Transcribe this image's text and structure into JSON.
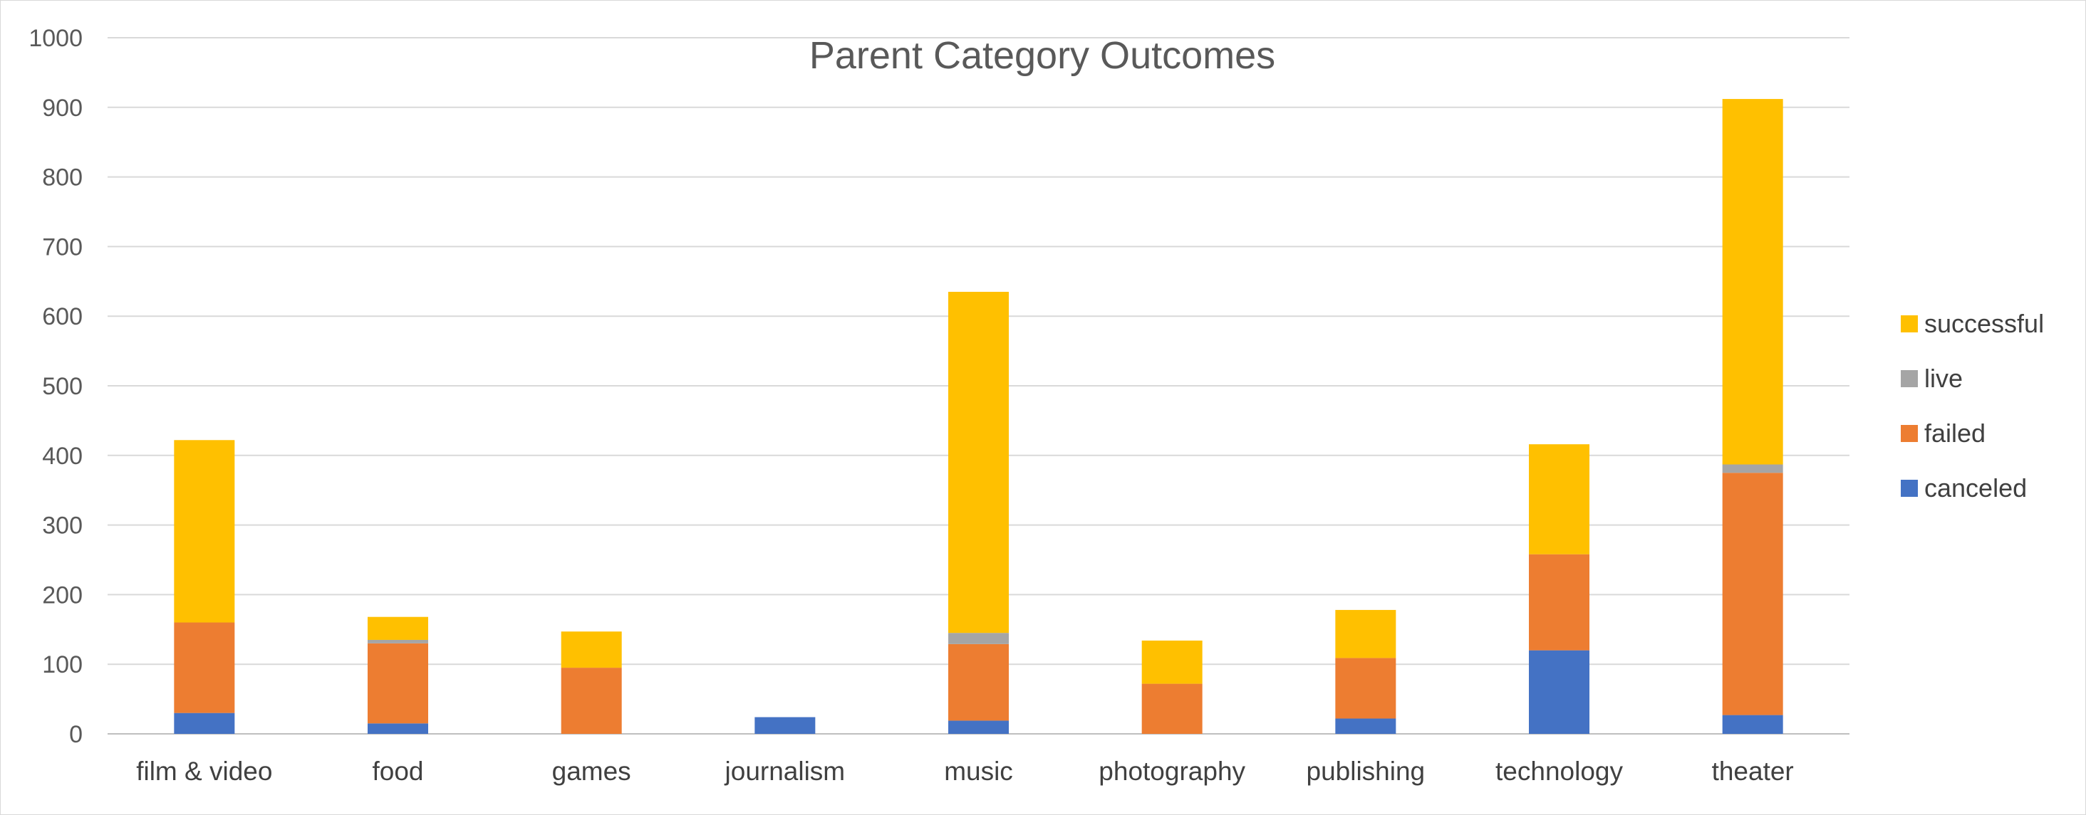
{
  "chart_data": {
    "type": "bar",
    "stacked": true,
    "title": "Parent Category Outcomes",
    "xlabel": "",
    "ylabel": "",
    "ylim": [
      0,
      1000
    ],
    "yticks": [
      0,
      100,
      200,
      300,
      400,
      500,
      600,
      700,
      800,
      900,
      1000
    ],
    "grid": true,
    "legend_position": "right",
    "categories": [
      "film & video",
      "food",
      "games",
      "journalism",
      "music",
      "photography",
      "publishing",
      "technology",
      "theater"
    ],
    "series": [
      {
        "name": "canceled",
        "color": "#4472C4",
        "values": [
          30,
          15,
          0,
          24,
          19,
          0,
          22,
          120,
          27
        ]
      },
      {
        "name": "failed",
        "color": "#ED7D31",
        "values": [
          130,
          115,
          95,
          0,
          110,
          72,
          87,
          138,
          348
        ]
      },
      {
        "name": "live",
        "color": "#A5A5A5",
        "values": [
          0,
          5,
          0,
          0,
          16,
          0,
          0,
          0,
          12
        ]
      },
      {
        "name": "successful",
        "color": "#FFC000",
        "values": [
          262,
          33,
          52,
          0,
          490,
          62,
          69,
          158,
          525
        ]
      }
    ]
  }
}
